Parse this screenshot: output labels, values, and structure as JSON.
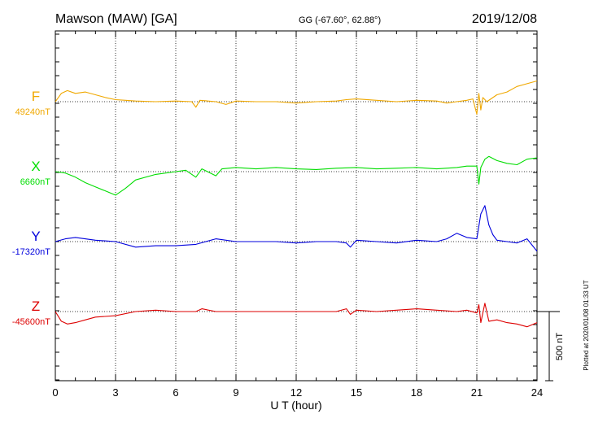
{
  "header": {
    "station": "Mawson (MAW)  [GA]",
    "coords": "GG (-67.60°,  62.88°)",
    "date": "2019/12/08"
  },
  "side_note": "Plotted at 2020/01/08 01:33 UT",
  "scale_label": "500 nT",
  "chart_data": {
    "type": "line",
    "title": "Mawson (MAW)  [GA]",
    "xlabel": "U T (hour)",
    "xlim": [
      0,
      24
    ],
    "xticks": [
      "0",
      "3",
      "6",
      "9",
      "12",
      "15",
      "18",
      "21",
      "24"
    ],
    "grid": true,
    "scale_bar_nT": 500,
    "series": [
      {
        "name": "F",
        "baseline_label": "49240nT",
        "baseline_nT": 49240,
        "color": "#f0a800",
        "x": [
          0,
          0.3,
          0.6,
          1,
          1.5,
          2,
          2.5,
          3,
          3.5,
          4,
          5,
          6,
          6.8,
          7,
          7.2,
          8,
          8.5,
          9,
          10,
          11,
          12,
          13,
          14,
          14.5,
          15,
          16,
          17,
          18,
          19,
          19.5,
          20,
          20.5,
          20.8,
          21,
          21.1,
          21.2,
          21.3,
          21.5,
          22,
          22.5,
          23,
          23.5,
          24
        ],
        "y": [
          0,
          60,
          80,
          60,
          70,
          50,
          30,
          15,
          10,
          5,
          0,
          5,
          0,
          -40,
          10,
          0,
          -20,
          5,
          0,
          0,
          -10,
          0,
          5,
          15,
          20,
          10,
          0,
          10,
          5,
          -10,
          0,
          10,
          20,
          -90,
          60,
          -60,
          30,
          0,
          50,
          70,
          110,
          130,
          150
        ]
      },
      {
        "name": "X",
        "baseline_label": "6660nT",
        "baseline_nT": 6660,
        "color": "#00dd00",
        "x": [
          0,
          0.5,
          1,
          1.5,
          2,
          2.5,
          3,
          3.5,
          4,
          5,
          6,
          6.5,
          7,
          7.3,
          8,
          8.3,
          9,
          10,
          11,
          12,
          13,
          14,
          15,
          16,
          17,
          18,
          19,
          20,
          20.5,
          21,
          21.1,
          21.2,
          21.4,
          21.6,
          22,
          22.5,
          23,
          23.5,
          24
        ],
        "y": [
          0,
          -10,
          -40,
          -80,
          -110,
          -140,
          -170,
          -120,
          -60,
          -20,
          0,
          10,
          -40,
          20,
          -30,
          20,
          30,
          20,
          30,
          20,
          15,
          25,
          30,
          20,
          25,
          30,
          20,
          30,
          40,
          40,
          -90,
          30,
          90,
          110,
          80,
          60,
          50,
          90,
          100
        ]
      },
      {
        "name": "Y",
        "baseline_label": "-17320nT",
        "baseline_nT": -17320,
        "color": "#0000dd",
        "x": [
          0,
          0.5,
          1,
          2,
          3,
          4,
          5,
          6,
          7,
          8,
          9,
          10,
          11,
          12,
          13,
          14,
          14.5,
          14.7,
          15,
          16,
          17,
          18,
          19,
          19.5,
          20,
          20.5,
          21,
          21.2,
          21.4,
          21.6,
          21.8,
          22,
          22.5,
          23,
          23.5,
          24
        ],
        "y": [
          0,
          20,
          30,
          10,
          0,
          -40,
          -30,
          -30,
          -20,
          20,
          0,
          0,
          0,
          -10,
          0,
          0,
          -10,
          -40,
          10,
          0,
          -10,
          10,
          0,
          20,
          60,
          30,
          20,
          200,
          260,
          120,
          50,
          10,
          0,
          -10,
          20,
          -70
        ]
      },
      {
        "name": "Z",
        "baseline_label": "-45600nT",
        "baseline_nT": -45600,
        "color": "#dd0000",
        "x": [
          0,
          0.3,
          0.6,
          1,
          1.5,
          2,
          3,
          4,
          5,
          6,
          7,
          7.3,
          8,
          9,
          10,
          12,
          14,
          14.5,
          14.7,
          15,
          16,
          17,
          18,
          19,
          20,
          20.5,
          21,
          21.1,
          21.2,
          21.4,
          21.6,
          22,
          22.5,
          23,
          23.5,
          24
        ],
        "y": [
          0,
          -70,
          -90,
          -80,
          -60,
          -40,
          -30,
          0,
          10,
          0,
          0,
          20,
          0,
          0,
          0,
          0,
          0,
          20,
          -20,
          10,
          0,
          10,
          20,
          10,
          0,
          10,
          -10,
          50,
          -80,
          60,
          -70,
          -60,
          -80,
          -90,
          -110,
          -80
        ]
      }
    ]
  }
}
